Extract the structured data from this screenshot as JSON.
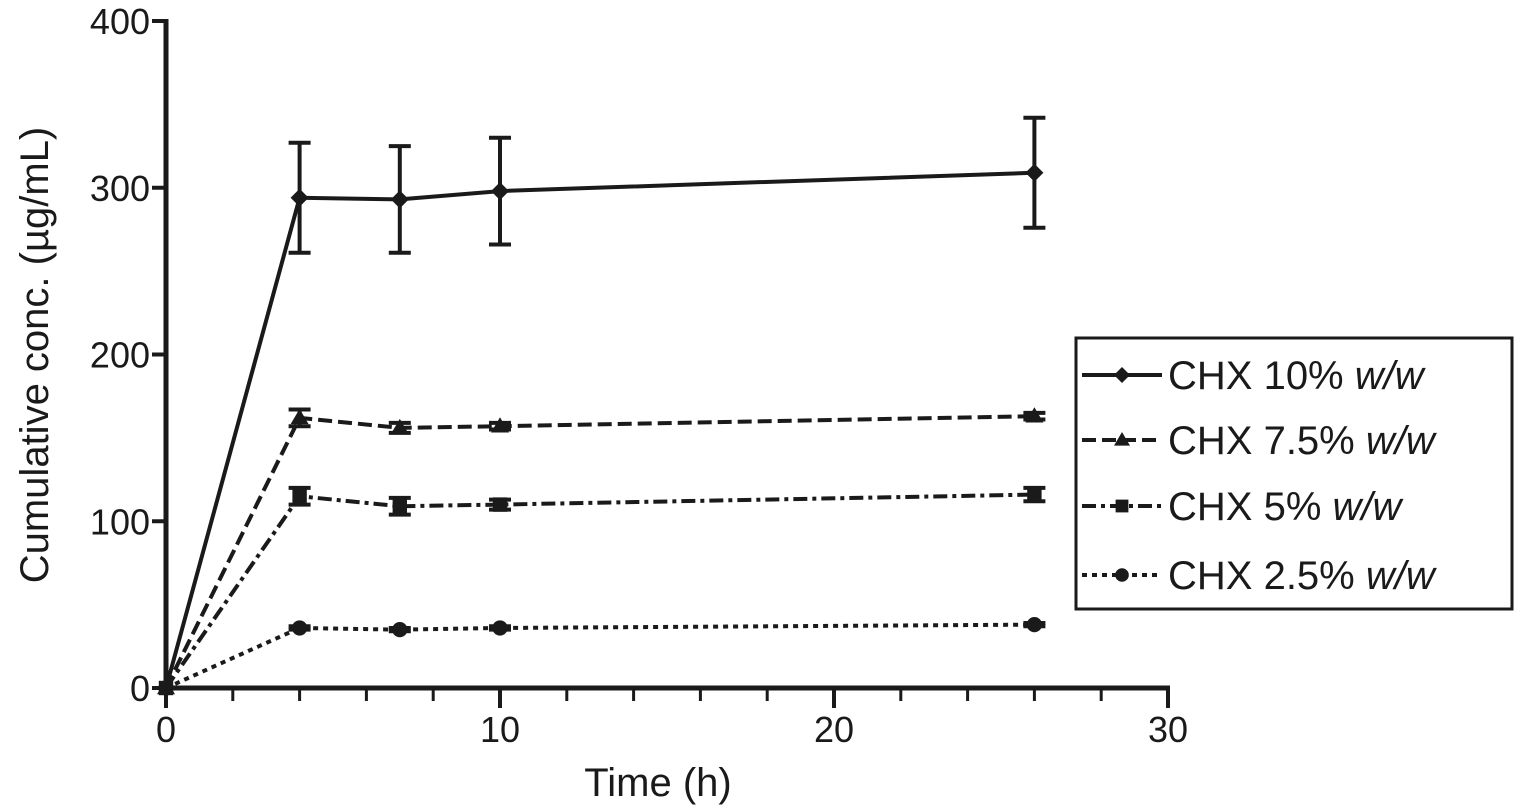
{
  "chart_data": {
    "type": "line",
    "title": "",
    "xlabel": "Time (h)",
    "ylabel": "Cumulative conc. (µg/mL)",
    "xlim": [
      0,
      30
    ],
    "ylim": [
      0,
      400
    ],
    "xticks": [
      0,
      10,
      20,
      30
    ],
    "xminor_step": 2,
    "yticks": [
      0,
      100,
      200,
      300,
      400
    ],
    "grid": false,
    "legend_position": "right",
    "x": [
      0,
      4,
      7,
      10,
      26
    ],
    "series": [
      {
        "name": "CHX 10%",
        "suffix": "w/w",
        "marker": "diamond",
        "dash": "solid",
        "values": [
          0,
          294,
          293,
          298,
          309
        ],
        "errors": [
          0,
          33,
          32,
          32,
          33
        ]
      },
      {
        "name": "CHX 7.5%",
        "suffix": "w/w",
        "marker": "triangle",
        "dash": "dashed",
        "values": [
          0,
          162,
          156,
          157,
          163
        ],
        "errors": [
          0,
          5,
          3,
          2,
          2
        ]
      },
      {
        "name": "CHX 5%",
        "suffix": "w/w",
        "marker": "square",
        "dash": "dashdot",
        "values": [
          0,
          115,
          109,
          110,
          116
        ],
        "errors": [
          0,
          5,
          5,
          3,
          4
        ]
      },
      {
        "name": "CHX 2.5%",
        "suffix": "w/w",
        "marker": "circle",
        "dash": "dotted",
        "values": [
          0,
          36,
          35,
          36,
          38
        ],
        "errors": [
          0,
          1,
          1,
          1,
          1
        ]
      }
    ]
  }
}
